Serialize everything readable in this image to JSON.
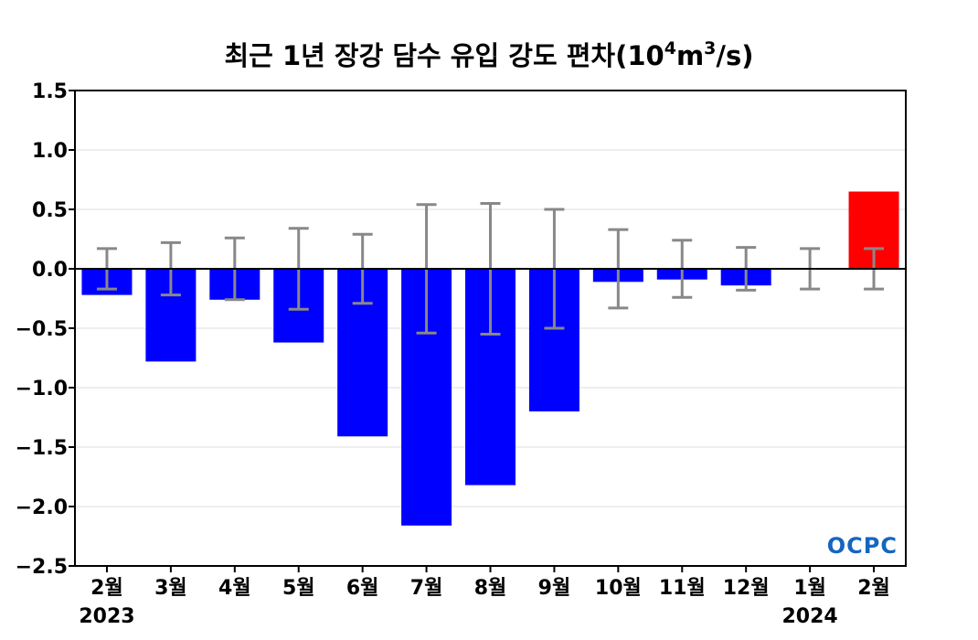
{
  "chart_data": {
    "type": "bar",
    "title": "최근 1년 장강 담수 유입 강도 편차(10",
    "title_sup1": "4",
    "title_mid": "m",
    "title_sup2": "3",
    "title_end": "/s)",
    "categories": [
      "2월",
      "3월",
      "4월",
      "5월",
      "6월",
      "7월",
      "8월",
      "9월",
      "10월",
      "11월",
      "12월",
      "1월",
      "2월"
    ],
    "year_labels": [
      {
        "category_index": 0,
        "text": "2023"
      },
      {
        "category_index": 11,
        "text": "2024"
      }
    ],
    "values": [
      -0.22,
      -0.78,
      -0.26,
      -0.62,
      -1.41,
      -2.16,
      -1.82,
      -1.2,
      -0.11,
      -0.09,
      -0.14,
      0.0,
      0.65
    ],
    "error": [
      0.17,
      0.22,
      0.26,
      0.34,
      0.29,
      0.54,
      0.55,
      0.5,
      0.33,
      0.24,
      0.18,
      0.17,
      0.17
    ],
    "ylim": [
      -2.5,
      1.5
    ],
    "yticks": [
      1.5,
      1.0,
      0.5,
      0.0,
      -0.5,
      -1.0,
      -1.5,
      -2.0,
      -2.5
    ],
    "ytick_labels": [
      "1.5",
      "1.0",
      "0.5",
      "0.0",
      "−0.5",
      "−1.0",
      "−1.5",
      "−2.0",
      "−2.5"
    ],
    "colors": {
      "negative": "#0000ff",
      "positive": "#ff0000",
      "error_bar": "#888888",
      "grid": "#dddddd"
    },
    "grid": true,
    "logo": "OCPC"
  }
}
